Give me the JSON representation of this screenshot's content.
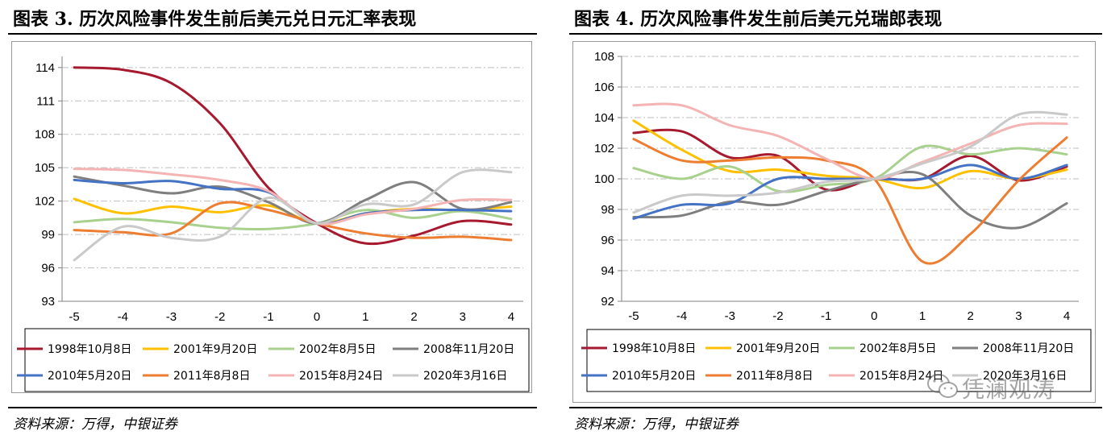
{
  "colors": {
    "1998": "#a6192e",
    "2001": "#ffc000",
    "2002": "#a9d18e",
    "2008": "#7f7f7f",
    "2010": "#4472c4",
    "2011": "#ed7d31",
    "2015": "#f4b4b4",
    "2020": "#c9c9c9",
    "grid": "#bfbfbf",
    "axis": "#808080"
  },
  "left": {
    "title": "图表 3. 历次风险事件发生前后美元兑日元汇率表现",
    "source": "资料来源：万得，中银证券"
  },
  "right": {
    "title": "图表 4. 历次风险事件发生前后美元兑瑞郎表现",
    "source": "资料来源：万得，中银证券",
    "watermark": "凭澜观涛",
    "watermark_icon": "wechat-icon"
  },
  "chart_data": [
    {
      "type": "line",
      "title": "图表 3. 历次风险事件发生前后美元兑日元汇率表现",
      "x": [
        -5,
        -4,
        -3,
        -2,
        -1,
        0,
        1,
        2,
        3,
        4
      ],
      "x_tick_labels": [
        "-5",
        "-4",
        "-3",
        "-2",
        "-1",
        "0",
        "1",
        "2",
        "3",
        "4"
      ],
      "ylim": [
        93,
        115
      ],
      "y_ticks": [
        93,
        96,
        99,
        102,
        105,
        108,
        111,
        114
      ],
      "grid": "horizontal dash-dot",
      "legend_position": "bottom",
      "series": [
        {
          "name": "1998年10月8日",
          "color_key": "1998",
          "values": [
            114,
            113.8,
            112.6,
            109,
            103.2,
            100,
            98.2,
            98.9,
            100.2,
            99.9
          ]
        },
        {
          "name": "2001年9月20日",
          "color_key": "2001",
          "values": [
            102.2,
            100.9,
            101.5,
            101,
            101.6,
            100,
            100.9,
            101.3,
            101.2,
            101.5
          ]
        },
        {
          "name": "2002年8月5日",
          "color_key": "2002",
          "values": [
            100.1,
            100.4,
            100.1,
            99.6,
            99.5,
            100,
            101.2,
            100.5,
            101.1,
            100.4
          ]
        },
        {
          "name": "2008年11月20日",
          "color_key": "2008",
          "values": [
            104.2,
            103.4,
            102.7,
            103.3,
            101.9,
            100,
            102.1,
            103.7,
            101.3,
            101.9
          ]
        },
        {
          "name": "2010年5月20日",
          "color_key": "2010",
          "values": [
            103.9,
            103.6,
            103.8,
            103.1,
            102.8,
            100,
            100.9,
            101.2,
            101.2,
            101.1
          ]
        },
        {
          "name": "2011年8月8日",
          "color_key": "2011",
          "values": [
            99.4,
            99.2,
            99.1,
            101.8,
            101.2,
            100,
            99.1,
            98.7,
            98.8,
            98.5
          ]
        },
        {
          "name": "2015年8月24日",
          "color_key": "2015",
          "values": [
            104.9,
            104.8,
            104.4,
            103.9,
            102.9,
            100,
            100.8,
            101.3,
            102.1,
            102.1
          ]
        },
        {
          "name": "2020年3月16日",
          "color_key": "2020",
          "values": [
            96.7,
            99.7,
            98.7,
            98.8,
            102.3,
            100,
            101.7,
            101.7,
            104.6,
            104.6
          ]
        }
      ]
    },
    {
      "type": "line",
      "title": "图表 4. 历次风险事件发生前后美元兑瑞郎表现",
      "x": [
        -5,
        -4,
        -3,
        -2,
        -1,
        0,
        1,
        2,
        3,
        4
      ],
      "x_tick_labels": [
        "-5",
        "-4",
        "-3",
        "-2",
        "-1",
        "0",
        "1",
        "2",
        "3",
        "4"
      ],
      "ylim": [
        92,
        108
      ],
      "y_ticks": [
        92,
        94,
        96,
        98,
        100,
        102,
        104,
        106,
        108
      ],
      "grid": "horizontal dash-dot",
      "legend_position": "bottom",
      "series": [
        {
          "name": "1998年10月8日",
          "color_key": "1998",
          "values": [
            103,
            103.1,
            101.4,
            101.5,
            99.3,
            100,
            100,
            101.5,
            99.9,
            100.8
          ]
        },
        {
          "name": "2001年9月20日",
          "color_key": "2001",
          "values": [
            103.8,
            101.9,
            100.5,
            100.6,
            100.2,
            100,
            99.4,
            100.5,
            100,
            100.6
          ]
        },
        {
          "name": "2002年8月5日",
          "color_key": "2002",
          "values": [
            100.7,
            100,
            100.8,
            99.2,
            99.6,
            100,
            102.1,
            101.6,
            102,
            101.6
          ]
        },
        {
          "name": "2008年11月20日",
          "color_key": "2008",
          "values": [
            97.5,
            97.6,
            98.5,
            98.3,
            99.2,
            100,
            100.3,
            97.6,
            96.8,
            98.4
          ]
        },
        {
          "name": "2010年5月20日",
          "color_key": "2010",
          "values": [
            97.4,
            98.3,
            98.4,
            100,
            100,
            100,
            100,
            100.9,
            100,
            100.9
          ]
        },
        {
          "name": "2011年8月8日",
          "color_key": "2011",
          "values": [
            102.6,
            101.2,
            101.2,
            101.4,
            101.2,
            100,
            94.6,
            96.4,
            99.9,
            102.7
          ]
        },
        {
          "name": "2015年8月24日",
          "color_key": "2015",
          "values": [
            104.8,
            104.8,
            103.5,
            102.8,
            101.3,
            100,
            101.1,
            102.3,
            103.5,
            103.6
          ]
        },
        {
          "name": "2020年3月16日",
          "color_key": "2020",
          "values": [
            97.8,
            98.9,
            98.9,
            99.1,
            99.8,
            100,
            101,
            102.1,
            104.2,
            104.2
          ]
        }
      ]
    }
  ]
}
